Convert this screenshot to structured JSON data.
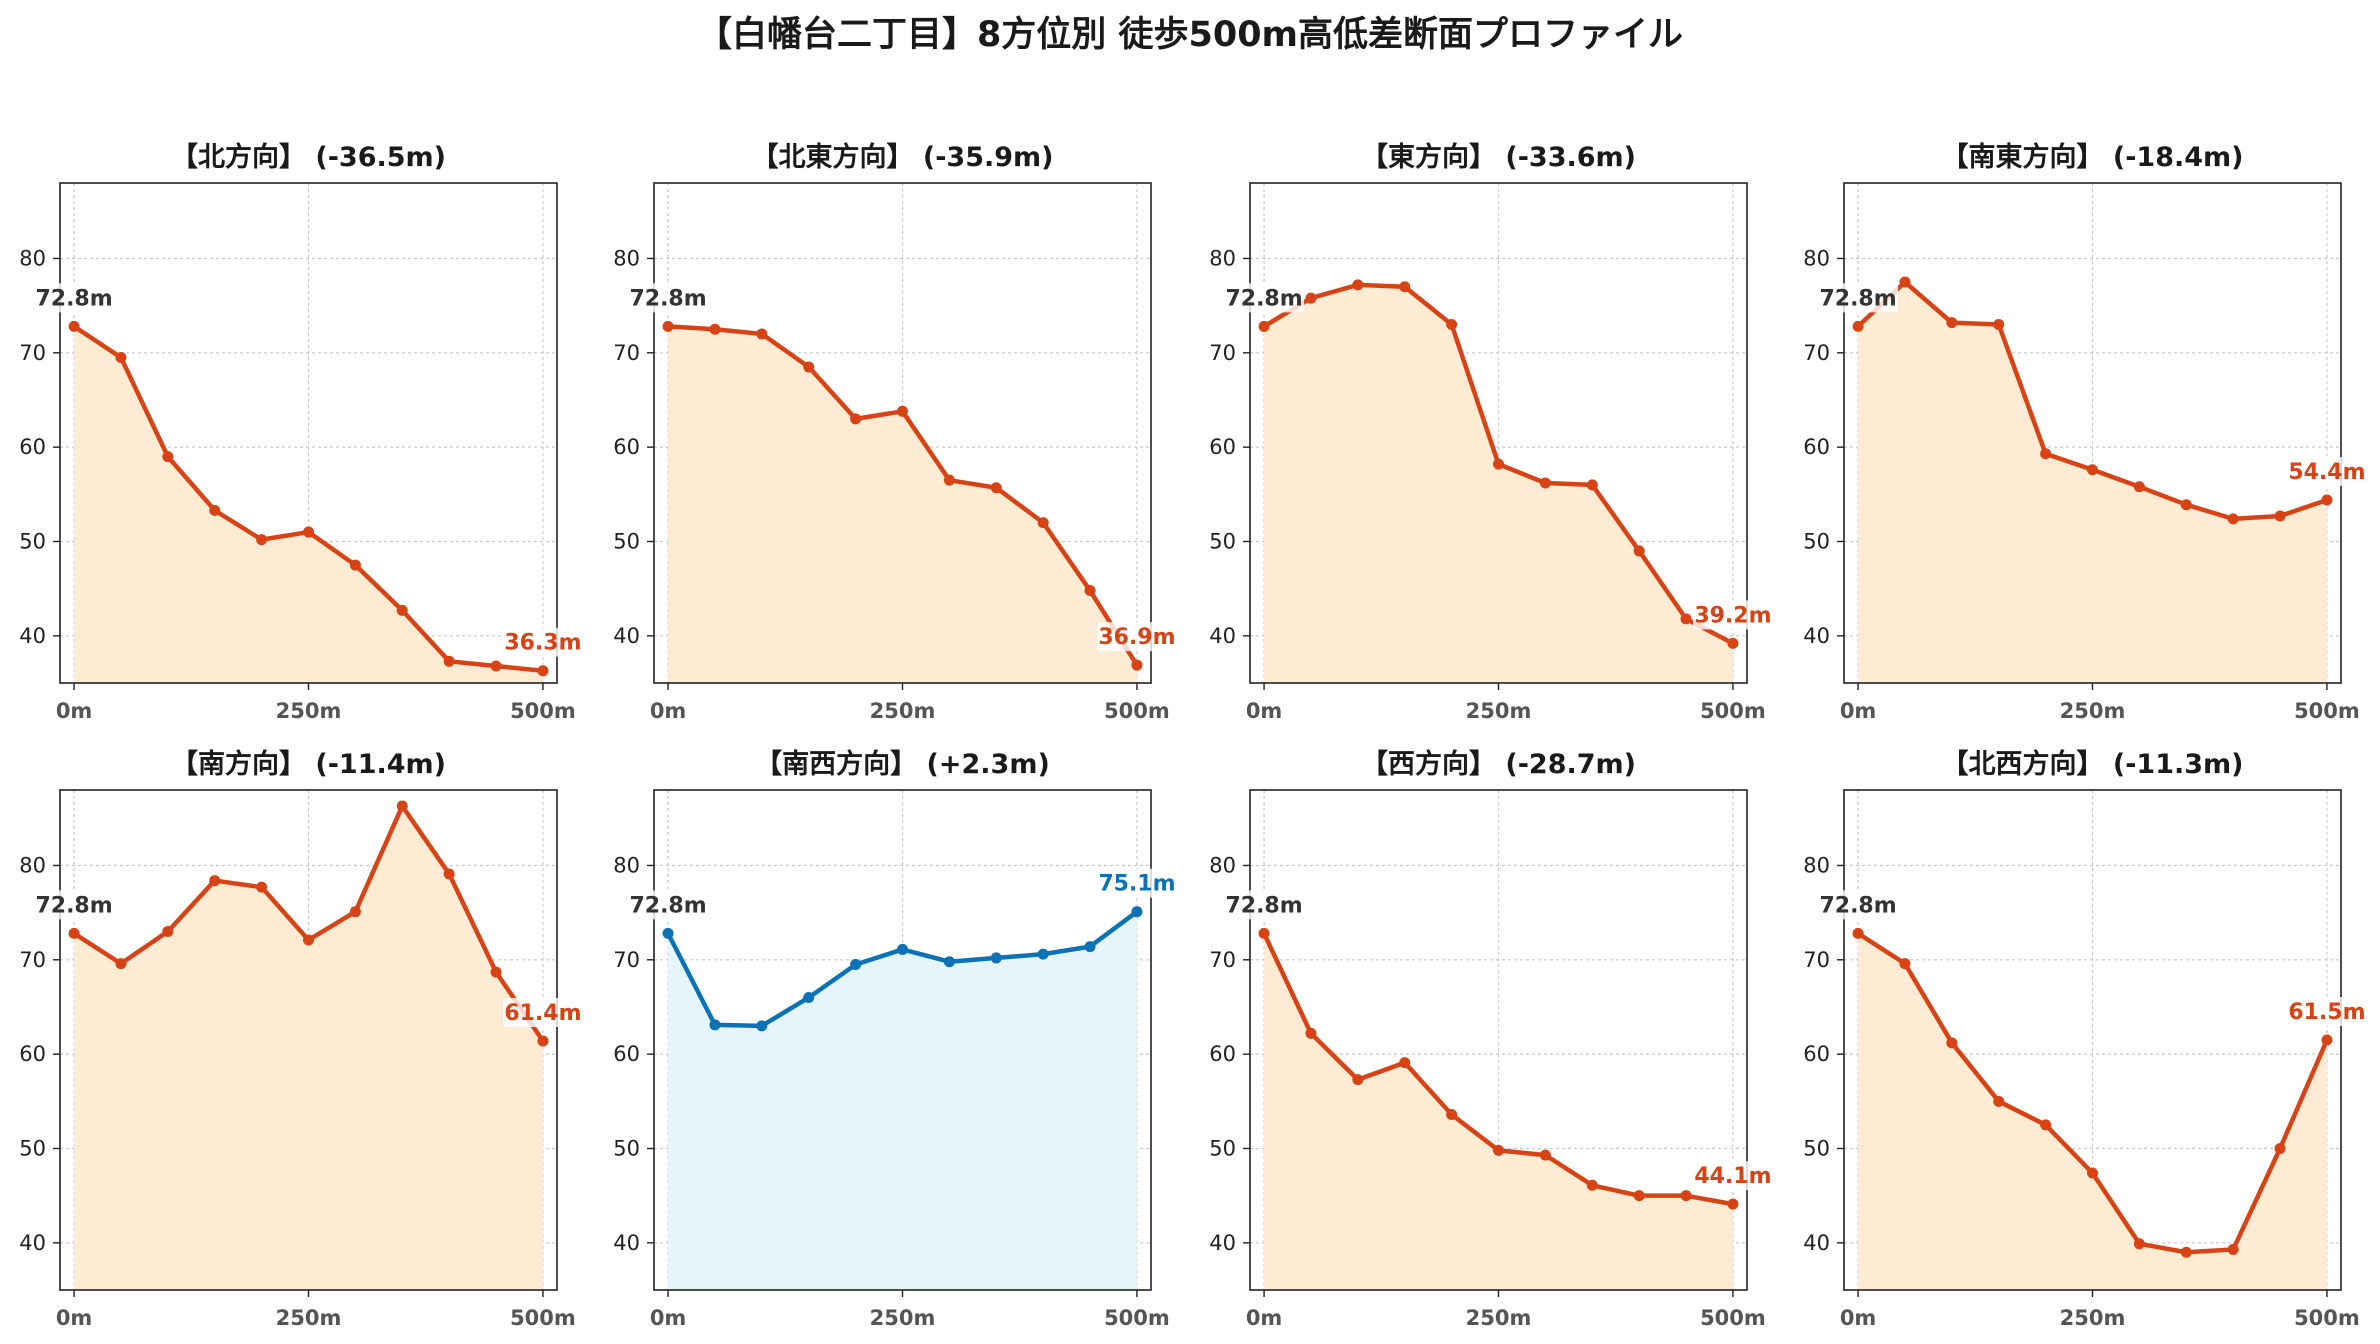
{
  "suptitle": "【白幡台二丁目】8方位別 徒歩500m高低差断面プロファイル",
  "colors": {
    "down_line": "#d84315",
    "down_fill": "#fdebd3",
    "up_line": "#0b72b5",
    "up_fill": "#e6f4fb",
    "start_label": "#333333"
  },
  "chart_data": [
    {
      "type": "area",
      "title": "【北方向】 (-36.5m)",
      "x": [
        0,
        50,
        100,
        150,
        200,
        250,
        300,
        350,
        400,
        450,
        500
      ],
      "values": [
        72.8,
        69.5,
        59.0,
        53.3,
        50.2,
        51.0,
        47.5,
        42.7,
        37.3,
        36.8,
        36.3
      ],
      "xticks": [
        "0m",
        "250m",
        "500m"
      ],
      "yticks": [
        40,
        50,
        60,
        70,
        80
      ],
      "xlim": [
        -15,
        515
      ],
      "ylim": [
        35,
        88
      ],
      "grid": true,
      "trend": "down",
      "start_label": "72.8m",
      "end_label": "36.3m"
    },
    {
      "type": "area",
      "title": "【北東方向】 (-35.9m)",
      "x": [
        0,
        50,
        100,
        150,
        200,
        250,
        300,
        350,
        400,
        450,
        500
      ],
      "values": [
        72.8,
        72.5,
        72.0,
        68.5,
        63.0,
        63.8,
        56.5,
        55.7,
        52.0,
        44.8,
        36.9
      ],
      "xticks": [
        "0m",
        "250m",
        "500m"
      ],
      "yticks": [
        40,
        50,
        60,
        70,
        80
      ],
      "xlim": [
        -15,
        515
      ],
      "ylim": [
        35,
        88
      ],
      "grid": true,
      "trend": "down",
      "start_label": "72.8m",
      "end_label": "36.9m"
    },
    {
      "type": "area",
      "title": "【東方向】 (-33.6m)",
      "x": [
        0,
        50,
        100,
        150,
        200,
        250,
        300,
        350,
        400,
        450,
        500
      ],
      "values": [
        72.8,
        75.8,
        77.2,
        77.0,
        73.0,
        58.2,
        56.2,
        56.0,
        49.0,
        41.8,
        39.2
      ],
      "xticks": [
        "0m",
        "250m",
        "500m"
      ],
      "yticks": [
        40,
        50,
        60,
        70,
        80
      ],
      "xlim": [
        -15,
        515
      ],
      "ylim": [
        35,
        88
      ],
      "grid": true,
      "trend": "down",
      "start_label": "72.8m",
      "end_label": "39.2m"
    },
    {
      "type": "area",
      "title": "【南東方向】 (-18.4m)",
      "x": [
        0,
        50,
        100,
        150,
        200,
        250,
        300,
        350,
        400,
        450,
        500
      ],
      "values": [
        72.8,
        77.5,
        73.2,
        73.0,
        59.3,
        57.6,
        55.8,
        53.9,
        52.4,
        52.7,
        54.4
      ],
      "xticks": [
        "0m",
        "250m",
        "500m"
      ],
      "yticks": [
        40,
        50,
        60,
        70,
        80
      ],
      "xlim": [
        -15,
        515
      ],
      "ylim": [
        35,
        88
      ],
      "grid": true,
      "trend": "down",
      "start_label": "72.8m",
      "end_label": "54.4m"
    },
    {
      "type": "area",
      "title": "【南方向】 (-11.4m)",
      "x": [
        0,
        50,
        100,
        150,
        200,
        250,
        300,
        350,
        400,
        450,
        500
      ],
      "values": [
        72.8,
        69.6,
        73.0,
        78.4,
        77.7,
        72.1,
        75.1,
        86.3,
        79.1,
        68.7,
        61.4
      ],
      "xticks": [
        "0m",
        "250m",
        "500m"
      ],
      "yticks": [
        40,
        50,
        60,
        70,
        80
      ],
      "xlim": [
        -15,
        515
      ],
      "ylim": [
        35,
        88
      ],
      "grid": true,
      "trend": "down",
      "start_label": "72.8m",
      "end_label": "61.4m"
    },
    {
      "type": "area",
      "title": "【南西方向】 (+2.3m)",
      "x": [
        0,
        50,
        100,
        150,
        200,
        250,
        300,
        350,
        400,
        450,
        500
      ],
      "values": [
        72.8,
        63.1,
        63.0,
        66.0,
        69.5,
        71.1,
        69.8,
        70.2,
        70.6,
        71.4,
        75.1
      ],
      "xticks": [
        "0m",
        "250m",
        "500m"
      ],
      "yticks": [
        40,
        50,
        60,
        70,
        80
      ],
      "xlim": [
        -15,
        515
      ],
      "ylim": [
        35,
        88
      ],
      "grid": true,
      "trend": "up",
      "start_label": "72.8m",
      "end_label": "75.1m"
    },
    {
      "type": "area",
      "title": "【西方向】 (-28.7m)",
      "x": [
        0,
        50,
        100,
        150,
        200,
        250,
        300,
        350,
        400,
        450,
        500
      ],
      "values": [
        72.8,
        62.2,
        57.3,
        59.1,
        53.6,
        49.8,
        49.3,
        46.1,
        45.0,
        45.0,
        44.1
      ],
      "xticks": [
        "0m",
        "250m",
        "500m"
      ],
      "yticks": [
        40,
        50,
        60,
        70,
        80
      ],
      "xlim": [
        -15,
        515
      ],
      "ylim": [
        35,
        88
      ],
      "grid": true,
      "trend": "down",
      "start_label": "72.8m",
      "end_label": "44.1m"
    },
    {
      "type": "area",
      "title": "【北西方向】 (-11.3m)",
      "x": [
        0,
        50,
        100,
        150,
        200,
        250,
        300,
        350,
        400,
        450,
        500
      ],
      "values": [
        72.8,
        69.6,
        61.2,
        55.0,
        52.5,
        47.4,
        39.9,
        39.0,
        39.3,
        50.0,
        61.5
      ],
      "xticks": [
        "0m",
        "250m",
        "500m"
      ],
      "yticks": [
        40,
        50,
        60,
        70,
        80
      ],
      "xlim": [
        -15,
        515
      ],
      "ylim": [
        35,
        88
      ],
      "grid": true,
      "trend": "down",
      "start_label": "72.8m",
      "end_label": "61.5m"
    }
  ]
}
